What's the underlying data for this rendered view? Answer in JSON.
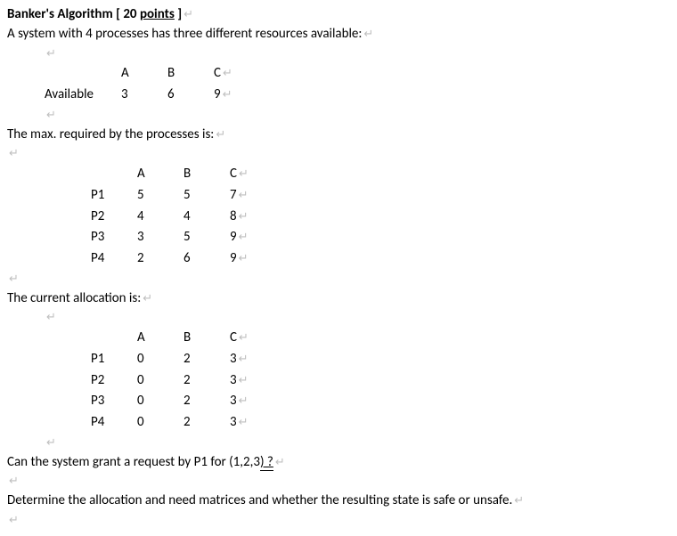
{
  "title_prefix": "Banker's Algorithm [ 20 ",
  "title_points": "points",
  "title_suffix": " ]",
  "intro": "A system with 4 processes has three different resources available:",
  "pilcrow": "↵",
  "columns": [
    "A",
    "B",
    "C"
  ],
  "available_label": "Available",
  "available": {
    "A": "3",
    "B": "6",
    "C": "9"
  },
  "max_text": "The max. required by the processes is:",
  "processes": [
    "P1",
    "P2",
    "P3",
    "P4"
  ],
  "max": {
    "P1": {
      "A": "5",
      "B": "5",
      "C": "7"
    },
    "P2": {
      "A": "4",
      "B": "4",
      "C": "8"
    },
    "P3": {
      "A": "3",
      "B": "5",
      "C": "9"
    },
    "P4": {
      "A": "2",
      "B": "6",
      "C": "9"
    }
  },
  "alloc_text": "The current allocation is:",
  "alloc": {
    "P1": {
      "A": "0",
      "B": "2",
      "C": "3"
    },
    "P2": {
      "A": "0",
      "B": "2",
      "C": "3"
    },
    "P3": {
      "A": "0",
      "B": "2",
      "C": "3"
    },
    "P4": {
      "A": "0",
      "B": "2",
      "C": "3"
    }
  },
  "q1_prefix": "Can the system grant a request by P1 for (1,2,3",
  "q1_underlined": ") ?",
  "q2": "Determine the allocation and need matrices and whether the resulting state is safe or unsafe."
}
